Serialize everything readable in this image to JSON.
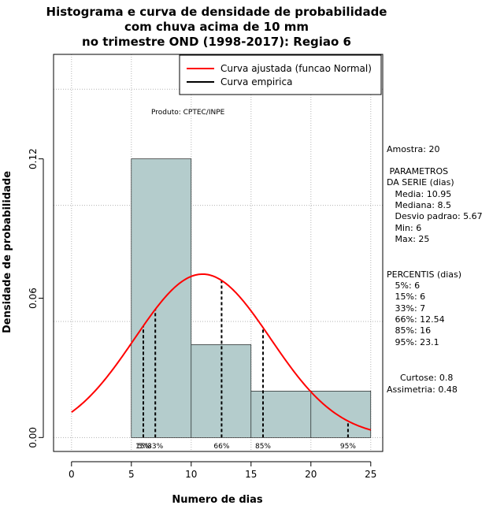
{
  "chart_data": {
    "type": "bar",
    "title_lines": [
      "Histograma e curva de densidade de probabilidade",
      "com chuva acima de 10 mm",
      "no trimestre OND (1998-2017): Regiao 6"
    ],
    "xlabel": "Numero de dias",
    "ylabel": "Densidade de probabilidade",
    "xlim": [
      -1.5,
      26
    ],
    "ylim": [
      -0.006,
      0.165
    ],
    "xticks": [
      "0",
      "5",
      "10",
      "15",
      "20",
      "25"
    ],
    "yticks": [
      "0.00",
      "0.06",
      "0.12"
    ],
    "bins": [
      {
        "start": 5,
        "end": 10,
        "density": 0.12
      },
      {
        "start": 10,
        "end": 15,
        "density": 0.04
      },
      {
        "start": 15,
        "end": 20,
        "density": 0.02
      },
      {
        "start": 20,
        "end": 25,
        "density": 0.02
      }
    ],
    "normal_curve": {
      "mean": 10.95,
      "sd": 5.67,
      "x_range": [
        0,
        25
      ]
    },
    "percentile_lines": [
      {
        "label": "5%",
        "x": 6
      },
      {
        "label": "15%",
        "x": 6
      },
      {
        "label": "33%",
        "x": 7
      },
      {
        "label": "66%",
        "x": 12.54
      },
      {
        "label": "85%",
        "x": 16
      },
      {
        "label": "95%",
        "x": 23.1
      }
    ],
    "legend": {
      "position": "top-right",
      "entries": [
        {
          "label": "Curva ajustada (funcao Normal)",
          "color": "#ff0000"
        },
        {
          "label": "Curva empirica",
          "color": "#000000"
        }
      ]
    },
    "annotation": "Produto: CPTEC/INPE",
    "grid": true,
    "colors": {
      "bar_fill": "#b4cccc",
      "curve": "#ff0000",
      "grid": "#b3b3b3"
    }
  },
  "stats_panel": {
    "amostra": "Amostra: 20",
    "param_lines": [
      " PARAMETROS",
      "DA SERIE (dias)",
      "   Media: 10.95",
      "   Mediana: 8.5",
      "   Desvio padrao: 5.67",
      "   Min: 6",
      "   Max: 25"
    ],
    "perc_lines": [
      "PERCENTIS (dias)",
      "   5%: 6",
      "   15%: 6",
      "   33%: 7",
      "   66%: 12.54",
      "   85%: 16",
      "   95%: 23.1"
    ],
    "curtose": "Curtose: 0.8",
    "assimetria": "Assimetria: 0.48"
  }
}
